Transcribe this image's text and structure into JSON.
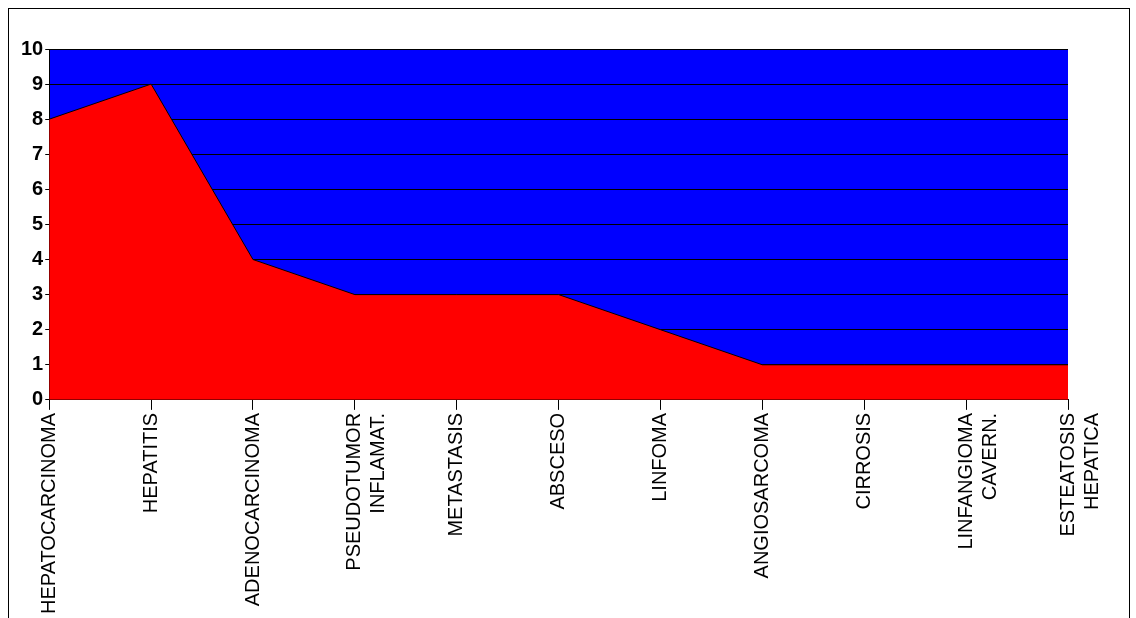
{
  "chart_data": {
    "type": "area",
    "categories": [
      "HEPATOCARCINOMA",
      "HEPATITIS",
      "ADENOCARCINOMA",
      "PSEUDOTUMOR INFLAMAT.",
      "METASTASIS",
      "ABSCESO",
      "LINFOMA",
      "ANGIOSARCOMA",
      "CIRROSIS",
      "LINFANGIOMA CAVERN.",
      "ESTEATOSIS HEPATICA"
    ],
    "series": [
      {
        "color": "#ff0000",
        "values": [
          8,
          9,
          4,
          3,
          3,
          3,
          2,
          1,
          1,
          1,
          1
        ]
      }
    ],
    "ylim": [
      0,
      10
    ],
    "yticks": [
      0,
      1,
      2,
      3,
      4,
      5,
      6,
      7,
      8,
      9,
      10
    ],
    "grid": "y",
    "legend": false
  }
}
